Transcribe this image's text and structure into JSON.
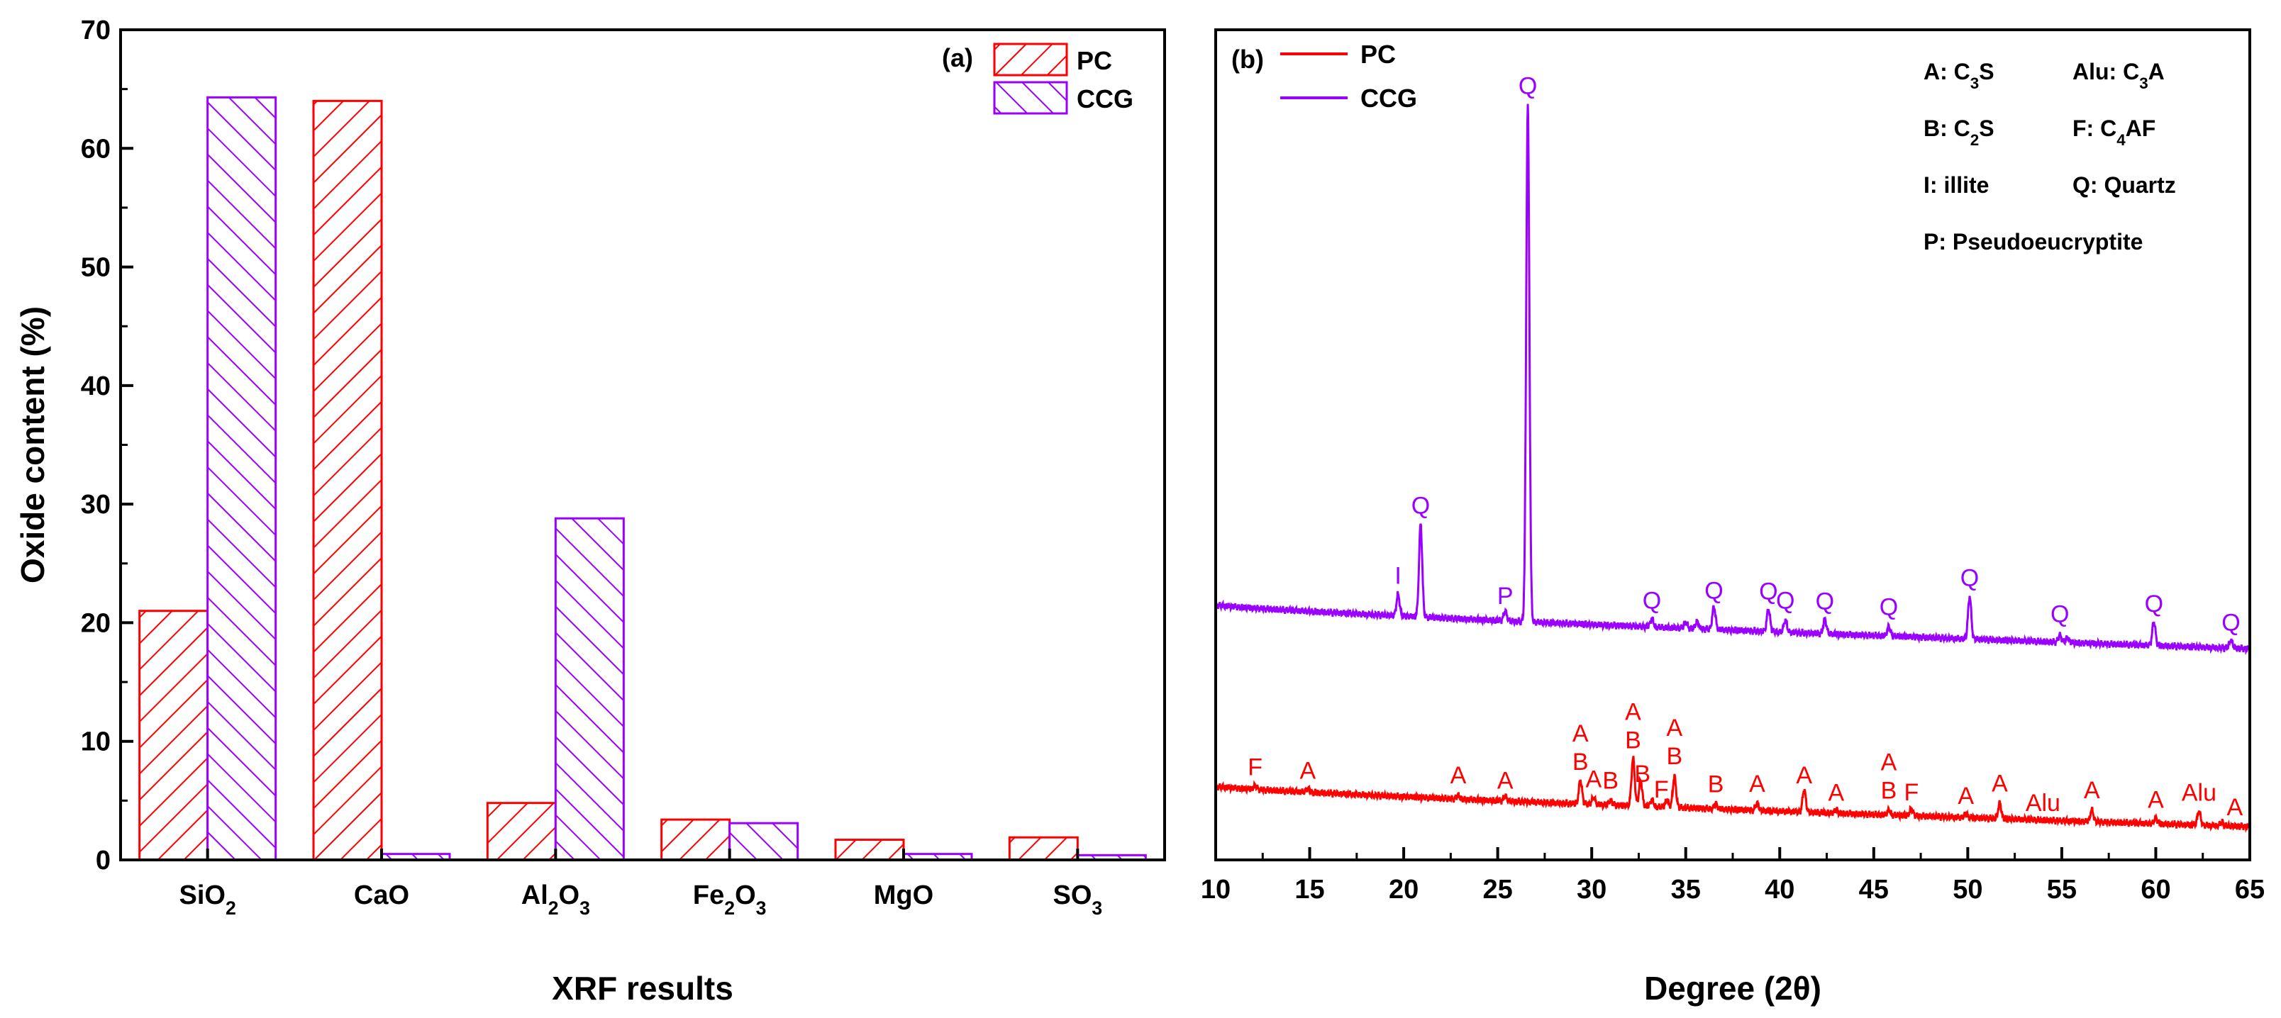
{
  "colors": {
    "pc": "#ff0000",
    "ccg": "#9900ff",
    "axis": "#000000"
  },
  "chart_data": [
    {
      "type": "bar",
      "panel_label": "(a)",
      "xlabel": "XRF results",
      "ylabel": "Oxide content (%)",
      "ylim": [
        0,
        70
      ],
      "yticks": [
        0,
        10,
        20,
        30,
        40,
        50,
        60,
        70
      ],
      "categories": [
        {
          "base": "SiO",
          "sub": "2",
          "tail": ""
        },
        {
          "base": "CaO",
          "sub": "",
          "tail": ""
        },
        {
          "base": "Al",
          "sub": "2",
          "tail": "O",
          "sub2": "3"
        },
        {
          "base": "Fe",
          "sub": "2",
          "tail": "O",
          "sub2": "3"
        },
        {
          "base": "MgO",
          "sub": "",
          "tail": ""
        },
        {
          "base": "SO",
          "sub": "3",
          "tail": ""
        }
      ],
      "series": [
        {
          "name": "PC",
          "values": [
            21.0,
            64.0,
            4.8,
            3.4,
            1.7,
            1.9
          ]
        },
        {
          "name": "CCG",
          "values": [
            64.3,
            0.5,
            28.8,
            3.1,
            0.5,
            0.4
          ]
        }
      ]
    },
    {
      "type": "line",
      "panel_label": "(b)",
      "xlabel": "Degree (2θ)",
      "xlim": [
        10,
        65
      ],
      "xticks": [
        10,
        15,
        20,
        25,
        30,
        35,
        40,
        45,
        50,
        55,
        60,
        65
      ],
      "series": [
        {
          "name": "PC",
          "baseline_start": 6.2,
          "baseline_end": 2.8,
          "peaks": [
            {
              "x": 12.1,
              "h": 0.3
            },
            {
              "x": 14.9,
              "h": 0.3
            },
            {
              "x": 22.9,
              "h": 0.3
            },
            {
              "x": 25.4,
              "h": 0.4
            },
            {
              "x": 29.4,
              "h": 2.0
            },
            {
              "x": 30.1,
              "h": 0.6
            },
            {
              "x": 31.0,
              "h": 0.4
            },
            {
              "x": 32.2,
              "h": 4.0
            },
            {
              "x": 32.6,
              "h": 2.2
            },
            {
              "x": 33.2,
              "h": 0.6
            },
            {
              "x": 34.0,
              "h": 0.6
            },
            {
              "x": 34.4,
              "h": 2.6
            },
            {
              "x": 36.6,
              "h": 0.4
            },
            {
              "x": 38.8,
              "h": 0.6
            },
            {
              "x": 41.3,
              "h": 1.9
            },
            {
              "x": 43.0,
              "h": 0.3
            },
            {
              "x": 45.8,
              "h": 0.4
            },
            {
              "x": 47.0,
              "h": 0.6
            },
            {
              "x": 49.9,
              "h": 0.3
            },
            {
              "x": 51.7,
              "h": 1.3
            },
            {
              "x": 56.6,
              "h": 1.0
            },
            {
              "x": 60.0,
              "h": 0.5
            },
            {
              "x": 62.3,
              "h": 1.2
            },
            {
              "x": 63.5,
              "h": 0.3
            }
          ]
        },
        {
          "name": "CCG",
          "baseline_start": 21.5,
          "baseline_end": 17.8,
          "peaks": [
            {
              "x": 19.7,
              "h": 1.8
            },
            {
              "x": 20.9,
              "h": 7.8
            },
            {
              "x": 25.4,
              "h": 0.8
            },
            {
              "x": 26.6,
              "h": 43.5
            },
            {
              "x": 33.2,
              "h": 0.7
            },
            {
              "x": 35.0,
              "h": 0.5
            },
            {
              "x": 35.6,
              "h": 0.6
            },
            {
              "x": 36.5,
              "h": 1.9
            },
            {
              "x": 39.4,
              "h": 1.9
            },
            {
              "x": 40.3,
              "h": 1.0
            },
            {
              "x": 42.4,
              "h": 1.2
            },
            {
              "x": 45.8,
              "h": 0.8
            },
            {
              "x": 50.1,
              "h": 3.6
            },
            {
              "x": 54.9,
              "h": 0.6
            },
            {
              "x": 55.3,
              "h": 0.4
            },
            {
              "x": 59.9,
              "h": 2.0
            },
            {
              "x": 64.0,
              "h": 0.7
            }
          ]
        }
      ],
      "peak_labels_ccg": [
        {
          "x": 19.7,
          "text": "I"
        },
        {
          "x": 20.9,
          "text": "Q"
        },
        {
          "x": 25.4,
          "text": "P"
        },
        {
          "x": 26.6,
          "text": "Q"
        },
        {
          "x": 33.2,
          "text": "Q"
        },
        {
          "x": 36.5,
          "text": "Q"
        },
        {
          "x": 39.4,
          "text": "Q"
        },
        {
          "x": 40.3,
          "text": "Q"
        },
        {
          "x": 42.4,
          "text": "Q"
        },
        {
          "x": 45.8,
          "text": "Q"
        },
        {
          "x": 50.1,
          "text": "Q"
        },
        {
          "x": 54.9,
          "text": "Q"
        },
        {
          "x": 59.9,
          "text": "Q"
        },
        {
          "x": 64.0,
          "text": "Q"
        }
      ],
      "peak_labels_pc": [
        {
          "x": 12.1,
          "lines": [
            "F"
          ]
        },
        {
          "x": 14.9,
          "lines": [
            "A"
          ]
        },
        {
          "x": 22.9,
          "lines": [
            "A"
          ]
        },
        {
          "x": 25.4,
          "lines": [
            "A"
          ]
        },
        {
          "x": 29.4,
          "lines": [
            "A",
            "B"
          ]
        },
        {
          "x": 30.1,
          "lines": [
            "A"
          ]
        },
        {
          "x": 31.0,
          "lines": [
            "B"
          ]
        },
        {
          "x": 32.2,
          "lines": [
            "A",
            "B"
          ]
        },
        {
          "x": 32.7,
          "lines": [
            "B"
          ]
        },
        {
          "x": 33.7,
          "lines": [
            "F"
          ]
        },
        {
          "x": 34.4,
          "lines": [
            "A",
            "B"
          ]
        },
        {
          "x": 36.6,
          "lines": [
            "B"
          ]
        },
        {
          "x": 38.8,
          "lines": [
            "A"
          ]
        },
        {
          "x": 41.3,
          "lines": [
            "A"
          ]
        },
        {
          "x": 43.0,
          "lines": [
            "A"
          ]
        },
        {
          "x": 45.8,
          "lines": [
            "A",
            "B"
          ]
        },
        {
          "x": 47.0,
          "lines": [
            "F"
          ]
        },
        {
          "x": 49.9,
          "lines": [
            "A"
          ]
        },
        {
          "x": 51.7,
          "lines": [
            "A"
          ]
        },
        {
          "x": 54.0,
          "lines": [
            "Alu"
          ]
        },
        {
          "x": 56.6,
          "lines": [
            "A"
          ]
        },
        {
          "x": 60.0,
          "lines": [
            "A"
          ]
        },
        {
          "x": 62.3,
          "lines": [
            "Alu"
          ]
        },
        {
          "x": 64.2,
          "lines": [
            "A"
          ]
        }
      ],
      "phase_legend": [
        {
          "key": "A",
          "base": "C",
          "sub": "3",
          "tail": "S"
        },
        {
          "key": "Alu",
          "base": "C",
          "sub": "3",
          "tail": "A"
        },
        {
          "key": "B",
          "base": "C",
          "sub": "2",
          "tail": "S"
        },
        {
          "key": "F",
          "base": "C",
          "sub": "4",
          "tail": "AF"
        },
        {
          "key": "I",
          "base": "illite",
          "sub": "",
          "tail": ""
        },
        {
          "key": "Q",
          "base": "Quartz",
          "sub": "",
          "tail": ""
        },
        {
          "key": "P",
          "base": "Pseudoeucryptite",
          "sub": "",
          "tail": ""
        }
      ]
    }
  ]
}
